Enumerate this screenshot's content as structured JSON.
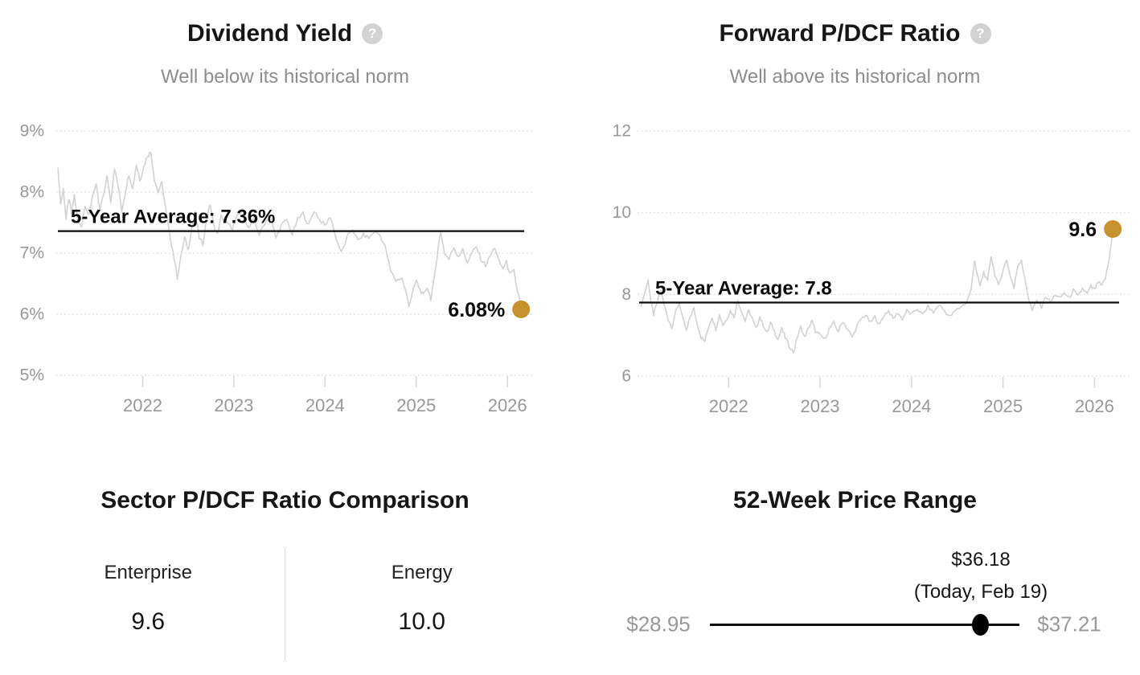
{
  "icons": {
    "help_glyph": "?"
  },
  "colors": {
    "accent_gold": "#C5922E",
    "series_line": "#d2d2d2",
    "grid_line": "#dedede",
    "axis_text": "#989898",
    "average_line": "#0b0b0b"
  },
  "chart_data": [
    {
      "type": "line",
      "title": "Dividend Yield",
      "subtitle": "Well below its historical norm",
      "unit": "%",
      "x_range": [
        2021.07,
        2026.21
      ],
      "y_range": [
        5,
        9
      ],
      "x_ticks": [
        2022,
        2023,
        2024,
        2025,
        2026
      ],
      "x_tick_labels": [
        "2022",
        "2023",
        "2024",
        "2025",
        "2026"
      ],
      "y_ticks": [
        9,
        8,
        7,
        6,
        5
      ],
      "y_tick_labels": [
        "9%",
        "8%",
        "7%",
        "6%",
        "5%"
      ],
      "grid": "dotted-horizontal",
      "legend": "none",
      "average_label": "5-Year Average: 7.36%",
      "average_value": 7.36,
      "current_label": "6.08%",
      "current_value": 6.08,
      "series": [
        {
          "name": "Dividend Yield",
          "points": [
            [
              2021.07,
              8.4
            ],
            [
              2021.1,
              7.8
            ],
            [
              2021.13,
              8.05
            ],
            [
              2021.16,
              7.55
            ],
            [
              2021.19,
              7.9
            ],
            [
              2021.22,
              7.65
            ],
            [
              2021.25,
              7.95
            ],
            [
              2021.29,
              7.5
            ],
            [
              2021.33,
              7.45
            ],
            [
              2021.37,
              7.8
            ],
            [
              2021.41,
              7.6
            ],
            [
              2021.45,
              7.95
            ],
            [
              2021.49,
              8.1
            ],
            [
              2021.53,
              7.7
            ],
            [
              2021.57,
              7.95
            ],
            [
              2021.61,
              8.25
            ],
            [
              2021.65,
              7.85
            ],
            [
              2021.69,
              8.4
            ],
            [
              2021.73,
              8.1
            ],
            [
              2021.77,
              7.7
            ],
            [
              2021.81,
              8.0
            ],
            [
              2021.85,
              8.3
            ],
            [
              2021.89,
              8.05
            ],
            [
              2021.93,
              8.45
            ],
            [
              2021.97,
              8.2
            ],
            [
              2022.01,
              8.4
            ],
            [
              2022.05,
              8.6
            ],
            [
              2022.09,
              8.65
            ],
            [
              2022.13,
              8.2
            ],
            [
              2022.17,
              8.0
            ],
            [
              2022.21,
              8.15
            ],
            [
              2022.25,
              7.75
            ],
            [
              2022.29,
              7.35
            ],
            [
              2022.33,
              7.05
            ],
            [
              2022.38,
              6.6
            ],
            [
              2022.42,
              6.95
            ],
            [
              2022.46,
              7.25
            ],
            [
              2022.5,
              7.05
            ],
            [
              2022.54,
              7.45
            ],
            [
              2022.58,
              7.65
            ],
            [
              2022.62,
              7.25
            ],
            [
              2022.66,
              7.15
            ],
            [
              2022.7,
              7.55
            ],
            [
              2022.74,
              7.8
            ],
            [
              2022.78,
              7.45
            ],
            [
              2022.82,
              7.3
            ],
            [
              2022.86,
              7.6
            ],
            [
              2022.92,
              7.5
            ],
            [
              2022.98,
              7.4
            ],
            [
              2023.04,
              7.6
            ],
            [
              2023.1,
              7.7
            ],
            [
              2023.16,
              7.4
            ],
            [
              2023.22,
              7.55
            ],
            [
              2023.28,
              7.3
            ],
            [
              2023.34,
              7.5
            ],
            [
              2023.4,
              7.6
            ],
            [
              2023.46,
              7.25
            ],
            [
              2023.52,
              7.45
            ],
            [
              2023.58,
              7.55
            ],
            [
              2023.64,
              7.3
            ],
            [
              2023.7,
              7.55
            ],
            [
              2023.76,
              7.65
            ],
            [
              2023.82,
              7.45
            ],
            [
              2023.88,
              7.7
            ],
            [
              2023.94,
              7.55
            ],
            [
              2024.0,
              7.45
            ],
            [
              2024.06,
              7.6
            ],
            [
              2024.12,
              7.25
            ],
            [
              2024.18,
              7.0
            ],
            [
              2024.24,
              7.25
            ],
            [
              2024.3,
              7.4
            ],
            [
              2024.36,
              7.2
            ],
            [
              2024.42,
              7.3
            ],
            [
              2024.48,
              7.25
            ],
            [
              2024.54,
              7.35
            ],
            [
              2024.6,
              7.3
            ],
            [
              2024.66,
              7.1
            ],
            [
              2024.72,
              6.7
            ],
            [
              2024.78,
              6.55
            ],
            [
              2024.84,
              6.6
            ],
            [
              2024.88,
              6.4
            ],
            [
              2024.92,
              6.15
            ],
            [
              2024.96,
              6.35
            ],
            [
              2025.0,
              6.55
            ],
            [
              2025.04,
              6.4
            ],
            [
              2025.08,
              6.3
            ],
            [
              2025.12,
              6.45
            ],
            [
              2025.16,
              6.25
            ],
            [
              2025.2,
              6.6
            ],
            [
              2025.24,
              7.1
            ],
            [
              2025.27,
              7.35
            ],
            [
              2025.31,
              7.0
            ],
            [
              2025.36,
              6.9
            ],
            [
              2025.41,
              7.1
            ],
            [
              2025.46,
              6.95
            ],
            [
              2025.51,
              7.05
            ],
            [
              2025.56,
              6.85
            ],
            [
              2025.61,
              7.0
            ],
            [
              2025.66,
              7.1
            ],
            [
              2025.71,
              6.9
            ],
            [
              2025.76,
              6.8
            ],
            [
              2025.81,
              6.95
            ],
            [
              2025.86,
              7.1
            ],
            [
              2025.91,
              6.85
            ],
            [
              2025.95,
              6.75
            ],
            [
              2025.99,
              6.85
            ],
            [
              2026.03,
              6.65
            ],
            [
              2026.07,
              6.7
            ],
            [
              2026.1,
              6.45
            ],
            [
              2026.13,
              6.25
            ],
            [
              2026.15,
              6.08
            ]
          ]
        }
      ]
    },
    {
      "type": "line",
      "title": "Forward P/DCF Ratio",
      "subtitle": "Well above its historical norm",
      "unit": "",
      "x_range": [
        2021.04,
        2026.26
      ],
      "y_range": [
        6,
        12
      ],
      "x_ticks": [
        2022,
        2023,
        2024,
        2025,
        2026
      ],
      "x_tick_labels": [
        "2022",
        "2023",
        "2024",
        "2025",
        "2026"
      ],
      "y_ticks": [
        12,
        10,
        8,
        6
      ],
      "y_tick_labels": [
        "12",
        "10",
        "8",
        "6"
      ],
      "grid": "dotted-horizontal",
      "legend": "none",
      "average_label": "5-Year Average: 7.8",
      "average_value": 7.8,
      "current_label": "9.6",
      "current_value": 9.6,
      "series": [
        {
          "name": "Forward P/DCF Ratio",
          "points": [
            [
              2021.04,
              7.7
            ],
            [
              2021.08,
              8.0
            ],
            [
              2021.12,
              8.35
            ],
            [
              2021.15,
              7.85
            ],
            [
              2021.18,
              7.5
            ],
            [
              2021.22,
              7.8
            ],
            [
              2021.26,
              8.1
            ],
            [
              2021.3,
              7.7
            ],
            [
              2021.34,
              7.4
            ],
            [
              2021.38,
              7.2
            ],
            [
              2021.42,
              7.55
            ],
            [
              2021.46,
              7.8
            ],
            [
              2021.5,
              7.4
            ],
            [
              2021.54,
              7.1
            ],
            [
              2021.58,
              7.45
            ],
            [
              2021.62,
              7.65
            ],
            [
              2021.66,
              7.25
            ],
            [
              2021.7,
              6.95
            ],
            [
              2021.74,
              6.85
            ],
            [
              2021.78,
              7.2
            ],
            [
              2021.82,
              7.45
            ],
            [
              2021.86,
              7.15
            ],
            [
              2021.9,
              7.5
            ],
            [
              2021.94,
              7.25
            ],
            [
              2021.98,
              7.4
            ],
            [
              2022.02,
              7.6
            ],
            [
              2022.06,
              7.45
            ],
            [
              2022.1,
              7.85
            ],
            [
              2022.14,
              7.6
            ],
            [
              2022.18,
              7.35
            ],
            [
              2022.22,
              7.6
            ],
            [
              2022.26,
              7.4
            ],
            [
              2022.3,
              7.15
            ],
            [
              2022.34,
              7.45
            ],
            [
              2022.38,
              7.25
            ],
            [
              2022.42,
              7.05
            ],
            [
              2022.46,
              7.3
            ],
            [
              2022.5,
              7.1
            ],
            [
              2022.54,
              6.9
            ],
            [
              2022.58,
              7.15
            ],
            [
              2022.62,
              6.95
            ],
            [
              2022.66,
              6.75
            ],
            [
              2022.71,
              6.58
            ],
            [
              2022.75,
              6.95
            ],
            [
              2022.79,
              7.2
            ],
            [
              2022.83,
              6.95
            ],
            [
              2022.87,
              7.15
            ],
            [
              2022.91,
              7.35
            ],
            [
              2022.95,
              7.1
            ],
            [
              2023.0,
              7.0
            ],
            [
              2023.05,
              6.9
            ],
            [
              2023.1,
              7.15
            ],
            [
              2023.15,
              7.3
            ],
            [
              2023.2,
              7.1
            ],
            [
              2023.25,
              7.35
            ],
            [
              2023.3,
              7.15
            ],
            [
              2023.35,
              6.95
            ],
            [
              2023.4,
              7.2
            ],
            [
              2023.45,
              7.4
            ],
            [
              2023.5,
              7.5
            ],
            [
              2023.55,
              7.3
            ],
            [
              2023.6,
              7.45
            ],
            [
              2023.65,
              7.25
            ],
            [
              2023.7,
              7.5
            ],
            [
              2023.75,
              7.6
            ],
            [
              2023.8,
              7.4
            ],
            [
              2023.85,
              7.55
            ],
            [
              2023.9,
              7.4
            ],
            [
              2023.95,
              7.6
            ],
            [
              2024.0,
              7.5
            ],
            [
              2024.06,
              7.65
            ],
            [
              2024.12,
              7.5
            ],
            [
              2024.18,
              7.7
            ],
            [
              2024.24,
              7.55
            ],
            [
              2024.3,
              7.75
            ],
            [
              2024.36,
              7.6
            ],
            [
              2024.42,
              7.45
            ],
            [
              2024.48,
              7.6
            ],
            [
              2024.54,
              7.7
            ],
            [
              2024.6,
              7.8
            ],
            [
              2024.65,
              8.1
            ],
            [
              2024.69,
              8.85
            ],
            [
              2024.72,
              8.45
            ],
            [
              2024.75,
              8.2
            ],
            [
              2024.79,
              8.55
            ],
            [
              2024.83,
              8.3
            ],
            [
              2024.87,
              8.95
            ],
            [
              2024.91,
              8.5
            ],
            [
              2024.95,
              8.2
            ],
            [
              2025.0,
              8.6
            ],
            [
              2025.04,
              8.85
            ],
            [
              2025.08,
              8.45
            ],
            [
              2025.12,
              8.15
            ],
            [
              2025.16,
              8.7
            ],
            [
              2025.2,
              8.85
            ],
            [
              2025.24,
              8.35
            ],
            [
              2025.28,
              7.9
            ],
            [
              2025.32,
              7.6
            ],
            [
              2025.37,
              7.85
            ],
            [
              2025.42,
              7.7
            ],
            [
              2025.47,
              7.95
            ],
            [
              2025.52,
              7.8
            ],
            [
              2025.57,
              8.0
            ],
            [
              2025.62,
              7.9
            ],
            [
              2025.67,
              8.05
            ],
            [
              2025.72,
              7.9
            ],
            [
              2025.77,
              8.1
            ],
            [
              2025.82,
              7.95
            ],
            [
              2025.87,
              8.15
            ],
            [
              2025.92,
              8.0
            ],
            [
              2025.96,
              8.2
            ],
            [
              2026.0,
              8.1
            ],
            [
              2026.04,
              8.3
            ],
            [
              2026.08,
              8.2
            ],
            [
              2026.12,
              8.4
            ],
            [
              2026.16,
              8.85
            ],
            [
              2026.2,
              9.6
            ]
          ]
        }
      ]
    }
  ],
  "sector_comparison": {
    "title": "Sector P/DCF Ratio Comparison",
    "items": [
      {
        "label": "Enterprise",
        "value": "9.6"
      },
      {
        "label": "Energy",
        "value": "10.0"
      }
    ]
  },
  "price_range": {
    "title": "52-Week Price Range",
    "low_label": "$28.95",
    "high_label": "$37.21",
    "current_label": "$36.18",
    "current_note": "(Today, Feb 19)",
    "low_value": 28.95,
    "high_value": 37.21,
    "current_value": 36.18
  }
}
